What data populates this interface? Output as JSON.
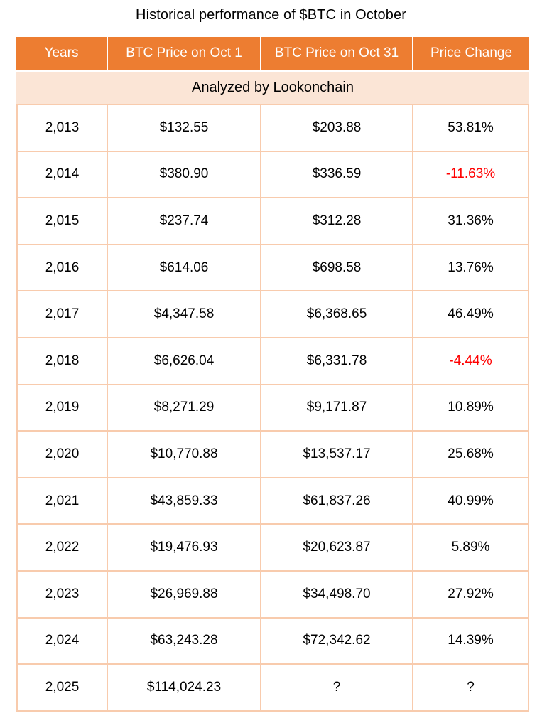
{
  "title": "Historical performance of $BTC in October",
  "table": {
    "headers": [
      "Years",
      "BTC Price on Oct 1",
      "BTC Price on Oct 31",
      "Price Change"
    ],
    "subheader": "Analyzed by Lookonchain",
    "rows": [
      {
        "year": "2,013",
        "oct1": "$132.55",
        "oct31": "$203.88",
        "change": "53.81%"
      },
      {
        "year": "2,014",
        "oct1": "$380.90",
        "oct31": "$336.59",
        "change": "-11.63%"
      },
      {
        "year": "2,015",
        "oct1": "$237.74",
        "oct31": "$312.28",
        "change": "31.36%"
      },
      {
        "year": "2,016",
        "oct1": "$614.06",
        "oct31": "$698.58",
        "change": "13.76%"
      },
      {
        "year": "2,017",
        "oct1": "$4,347.58",
        "oct31": "$6,368.65",
        "change": "46.49%"
      },
      {
        "year": "2,018",
        "oct1": "$6,626.04",
        "oct31": "$6,331.78",
        "change": "-4.44%"
      },
      {
        "year": "2,019",
        "oct1": "$8,271.29",
        "oct31": "$9,171.87",
        "change": "10.89%"
      },
      {
        "year": "2,020",
        "oct1": "$10,770.88",
        "oct31": "$13,537.17",
        "change": "25.68%"
      },
      {
        "year": "2,021",
        "oct1": "$43,859.33",
        "oct31": "$61,837.26",
        "change": "40.99%"
      },
      {
        "year": "2,022",
        "oct1": "$19,476.93",
        "oct31": "$20,623.87",
        "change": "5.89%"
      },
      {
        "year": "2,023",
        "oct1": "$26,969.88",
        "oct31": "$34,498.70",
        "change": "27.92%"
      },
      {
        "year": "2,024",
        "oct1": "$63,243.28",
        "oct31": "$72,342.62",
        "change": "14.39%"
      },
      {
        "year": "2,025",
        "oct1": "$114,024.23",
        "oct31": "?",
        "change": "?"
      }
    ],
    "colors": {
      "header_bg": "#ED7D31",
      "header_text": "#FFFFFF",
      "subheader_bg": "#FBE5D6",
      "border": "#F8CBAD",
      "negative_change": "#FF0000",
      "text": "#000000"
    }
  },
  "chart_data": {
    "type": "table",
    "title": "Historical performance of $BTC in October",
    "columns": [
      "Years",
      "BTC Price on Oct 1",
      "BTC Price on Oct 31",
      "Price Change"
    ],
    "annotation": "Analyzed by Lookonchain",
    "years": [
      2013,
      2014,
      2015,
      2016,
      2017,
      2018,
      2019,
      2020,
      2021,
      2022,
      2023,
      2024,
      2025
    ],
    "btc_price_oct_1": [
      132.55,
      380.9,
      237.74,
      614.06,
      4347.58,
      6626.04,
      8271.29,
      10770.88,
      43859.33,
      19476.93,
      26969.88,
      63243.28,
      114024.23
    ],
    "btc_price_oct_31": [
      203.88,
      336.59,
      312.28,
      698.58,
      6368.65,
      6331.78,
      9171.87,
      13537.17,
      61837.26,
      20623.87,
      34498.7,
      72342.62,
      null
    ],
    "price_change_pct": [
      53.81,
      -11.63,
      31.36,
      13.76,
      46.49,
      -4.44,
      10.89,
      25.68,
      40.99,
      5.89,
      27.92,
      14.39,
      null
    ]
  }
}
